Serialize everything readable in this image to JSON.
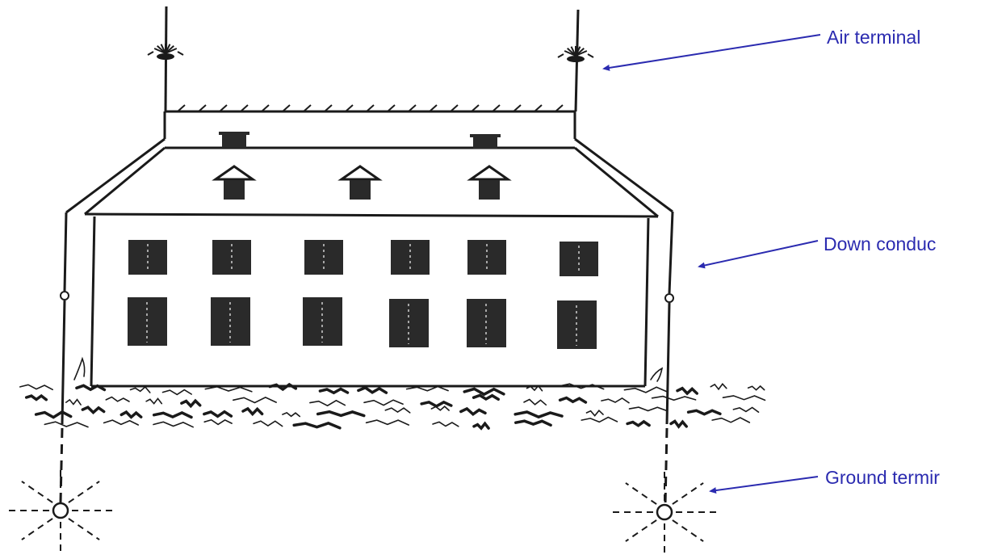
{
  "labels": {
    "air_terminal": "Air terminal",
    "down_conductor": "Down conduc",
    "ground_terminal": "Ground termir"
  },
  "colors": {
    "line": "#1a1a1a",
    "label": "#2b2bb0",
    "window": "#2a2a2a",
    "background": "#ffffff"
  }
}
